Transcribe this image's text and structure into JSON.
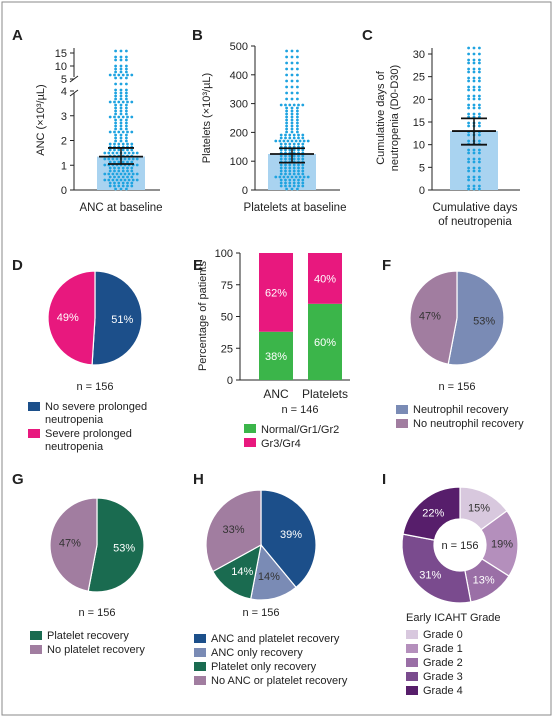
{
  "chart_data": [
    {
      "panel": "A",
      "type": "scatter",
      "ylabel": "ANC (×10³/µL)",
      "xlabel": "ANC at baseline",
      "y_ticks_lower": [
        "0",
        "1",
        "2",
        "3",
        "4"
      ],
      "y_ticks_upper": [
        "5",
        "10",
        "15"
      ],
      "axis_break": true,
      "bar_value": 1.35,
      "error_bar": [
        1.05,
        1.7
      ],
      "points": [
        0.1,
        0.15,
        0.2,
        0.25,
        0.3,
        0.35,
        0.4,
        0.45,
        0.5,
        0.55,
        0.6,
        0.65,
        0.7,
        0.75,
        0.8,
        0.85,
        0.9,
        0.95,
        1.0,
        1.05,
        1.1,
        1.15,
        1.2,
        1.25,
        1.3,
        1.35,
        1.4,
        1.45,
        1.5,
        1.55,
        1.6,
        1.65,
        1.7,
        1.75,
        1.8,
        1.9,
        2.0,
        2.1,
        2.2,
        2.3,
        2.4,
        2.5,
        2.6,
        2.7,
        2.8,
        2.9,
        3.0,
        3.1,
        3.2,
        3.3,
        3.4,
        3.5,
        3.6,
        3.7,
        3.8,
        3.9,
        4.1,
        4.3,
        5.0,
        6.0,
        7.0,
        8.0,
        9.0,
        10.0,
        12.0,
        14.0,
        16.0
      ]
    },
    {
      "panel": "B",
      "type": "scatter",
      "ylabel": "Platelets (×10³/µL)",
      "xlabel": "Platelets at baseline",
      "ylim": [
        0,
        500
      ],
      "y_ticks": [
        "0",
        "100",
        "200",
        "300",
        "400",
        "500"
      ],
      "bar_value": 125,
      "error_bar": [
        95,
        145
      ],
      "points": [
        5,
        10,
        15,
        20,
        25,
        30,
        35,
        40,
        45,
        50,
        55,
        60,
        65,
        70,
        75,
        80,
        85,
        90,
        95,
        100,
        105,
        110,
        115,
        120,
        125,
        130,
        135,
        140,
        145,
        150,
        155,
        160,
        165,
        170,
        175,
        180,
        185,
        190,
        195,
        200,
        210,
        220,
        230,
        240,
        250,
        260,
        270,
        280,
        290,
        300,
        320,
        340,
        360,
        380,
        400,
        420,
        440,
        460,
        480
      ]
    },
    {
      "panel": "C",
      "type": "scatter",
      "ylabel": "Cumulative days of neutropenia (D0-D30)",
      "xlabel": "Cumulative days of neutropenia",
      "ylim": [
        0,
        30
      ],
      "y_ticks": [
        "0",
        "5",
        "10",
        "15",
        "20",
        "25",
        "30"
      ],
      "bar_value": 13,
      "error_bar": [
        10,
        15.8
      ],
      "points": [
        0,
        1,
        2,
        3,
        4,
        5,
        6,
        7,
        8,
        9,
        10,
        11,
        12,
        13,
        14,
        15,
        16,
        17,
        18,
        19,
        20,
        21,
        22,
        23,
        24,
        25,
        26,
        27,
        28,
        29,
        30,
        31
      ]
    },
    {
      "panel": "D",
      "type": "pie",
      "labels": [
        "No severe prolonged neutropenia",
        "Severe prolonged neutropenia"
      ],
      "values": [
        51,
        49
      ],
      "value_labels": [
        "51%",
        "49%"
      ],
      "n_label": "n = 156",
      "colors": [
        "#1c4f8a",
        "#e8187e"
      ]
    },
    {
      "panel": "E",
      "type": "bar",
      "stacked": true,
      "ylabel": "Percentage of patients",
      "ylim": [
        0,
        100
      ],
      "y_ticks": [
        "0",
        "25",
        "50",
        "75",
        "100"
      ],
      "categories": [
        "ANC",
        "Platelets"
      ],
      "series": [
        {
          "name": "Normal/Gr1/Gr2",
          "values": [
            38,
            60
          ],
          "value_labels": [
            "38%",
            "60%"
          ],
          "color": "#3bb54a"
        },
        {
          "name": "Gr3/Gr4",
          "values": [
            62,
            40
          ],
          "value_labels": [
            "62%",
            "40%"
          ],
          "color": "#e8187e"
        }
      ],
      "n_label": "n = 146"
    },
    {
      "panel": "F",
      "type": "pie",
      "labels": [
        "Neutrophil recovery",
        "No neutrophil recovery"
      ],
      "values": [
        53,
        47
      ],
      "value_labels": [
        "53%",
        "47%"
      ],
      "n_label": "n = 156",
      "colors": [
        "#7a8bb5",
        "#a17da0"
      ]
    },
    {
      "panel": "G",
      "type": "pie",
      "labels": [
        "Platelet recovery",
        "No platelet recovery"
      ],
      "values": [
        53,
        47
      ],
      "value_labels": [
        "53%",
        "47%"
      ],
      "n_label": "n = 156",
      "colors": [
        "#1a6b50",
        "#a17da0"
      ]
    },
    {
      "panel": "H",
      "type": "pie",
      "labels": [
        "ANC and platelet recovery",
        "ANC only recovery",
        "Platelet only recovery",
        "No ANC or platelet recovery"
      ],
      "values": [
        39,
        14,
        14,
        33
      ],
      "value_labels": [
        "39%",
        "14%",
        "14%",
        "33%"
      ],
      "n_label": "n = 156",
      "colors": [
        "#1c4f8a",
        "#7a8bb5",
        "#1a6b50",
        "#a17da0"
      ]
    },
    {
      "panel": "I",
      "type": "pie",
      "donut": true,
      "center_label": "n = 156",
      "legend_title": "Early ICAHT Grade",
      "labels": [
        "Grade 0",
        "Grade 1",
        "Grade 2",
        "Grade 3",
        "Grade 4"
      ],
      "values": [
        15,
        19,
        13,
        31,
        22
      ],
      "value_labels": [
        "15%",
        "19%",
        "13%",
        "31%",
        "22%"
      ],
      "colors": [
        "#d8c8de",
        "#b48fbc",
        "#9a6fa6",
        "#7a4b8e",
        "#571e6b"
      ]
    }
  ],
  "styles": {
    "bar_fill": "#a9d3f0",
    "dot_color": "#1ea3e0",
    "errorbar_color": "#111111",
    "border_color": "#8a8a8a"
  }
}
